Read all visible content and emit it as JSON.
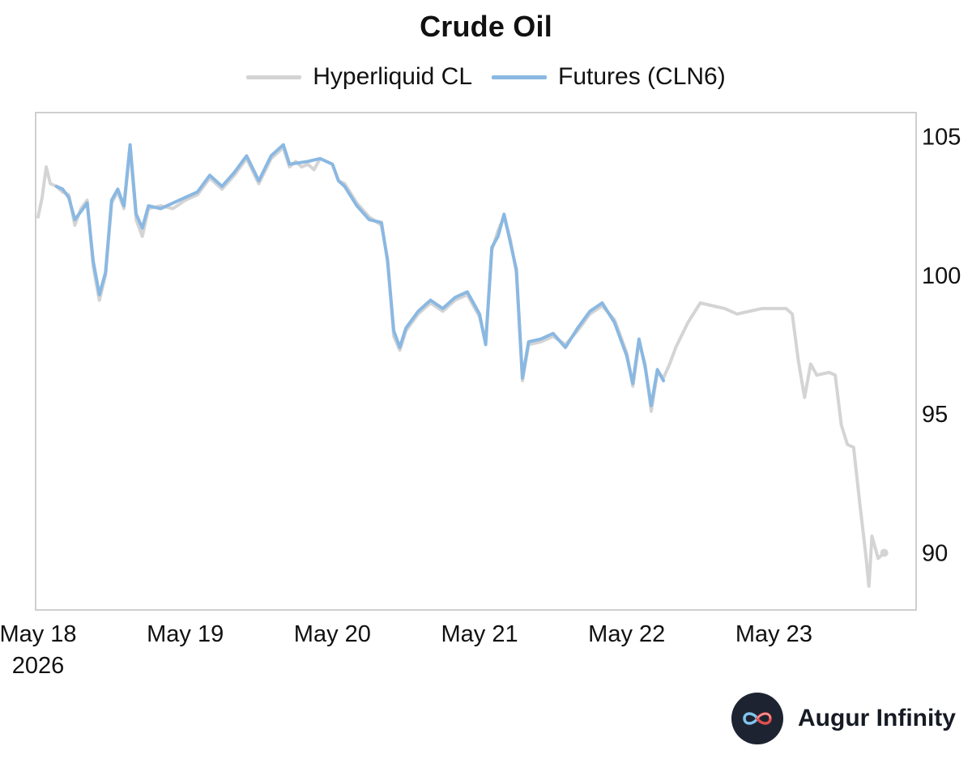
{
  "brand": {
    "name": "Augur Infinity",
    "logo_icon": "infinity-icon"
  },
  "chart_data": {
    "type": "line",
    "title": "Crude Oil",
    "xlabel": "",
    "ylabel": "",
    "x_tick_labels": [
      "May 18\n2026",
      "May 19",
      "May 20",
      "May 21",
      "May 22",
      "May 23"
    ],
    "x_range_days": [
      0,
      5.95
    ],
    "ylim": [
      88,
      105.8
    ],
    "y_ticks": [
      90,
      95,
      100,
      105
    ],
    "y_axis_position": "right",
    "grid": false,
    "legend_position": "top-center",
    "series": [
      {
        "name": "Hyperliquid CL",
        "color": "#d4d4d4",
        "points": [
          [
            "2026-05-18 00:00",
            102.1
          ],
          [
            "2026-05-18 00:40",
            102.8
          ],
          [
            "2026-05-18 01:20",
            103.9
          ],
          [
            "2026-05-18 02:00",
            103.3
          ],
          [
            "2026-05-18 03:00",
            103.2
          ],
          [
            "2026-05-18 04:00",
            103.0
          ],
          [
            "2026-05-18 05:00",
            102.9
          ],
          [
            "2026-05-18 06:00",
            101.8
          ],
          [
            "2026-05-18 07:00",
            102.4
          ],
          [
            "2026-05-18 08:00",
            102.7
          ],
          [
            "2026-05-18 09:00",
            100.3
          ],
          [
            "2026-05-18 10:00",
            99.1
          ],
          [
            "2026-05-18 11:00",
            100.0
          ],
          [
            "2026-05-18 12:00",
            102.6
          ],
          [
            "2026-05-18 13:00",
            103.0
          ],
          [
            "2026-05-18 14:00",
            102.4
          ],
          [
            "2026-05-18 15:00",
            104.6
          ],
          [
            "2026-05-18 16:00",
            102.0
          ],
          [
            "2026-05-18 17:00",
            101.4
          ],
          [
            "2026-05-18 18:00",
            102.4
          ],
          [
            "2026-05-18 20:00",
            102.5
          ],
          [
            "2026-05-18 22:00",
            102.4
          ],
          [
            "2026-05-19 00:00",
            102.7
          ],
          [
            "2026-05-19 02:00",
            102.9
          ],
          [
            "2026-05-19 04:00",
            103.5
          ],
          [
            "2026-05-19 06:00",
            103.1
          ],
          [
            "2026-05-19 08:00",
            103.6
          ],
          [
            "2026-05-19 10:00",
            104.2
          ],
          [
            "2026-05-19 12:00",
            103.3
          ],
          [
            "2026-05-19 14:00",
            104.2
          ],
          [
            "2026-05-19 16:00",
            104.6
          ],
          [
            "2026-05-19 17:00",
            103.9
          ],
          [
            "2026-05-19 18:00",
            104.1
          ],
          [
            "2026-05-19 19:00",
            103.9
          ],
          [
            "2026-05-19 20:00",
            104.0
          ],
          [
            "2026-05-19 21:00",
            103.8
          ],
          [
            "2026-05-19 22:00",
            104.2
          ],
          [
            "2026-05-20 00:00",
            104.0
          ],
          [
            "2026-05-20 01:00",
            103.4
          ],
          [
            "2026-05-20 02:00",
            103.3
          ],
          [
            "2026-05-20 04:00",
            102.6
          ],
          [
            "2026-05-20 06:00",
            102.1
          ],
          [
            "2026-05-20 08:00",
            101.8
          ],
          [
            "2026-05-20 09:00",
            100.6
          ],
          [
            "2026-05-20 10:00",
            97.8
          ],
          [
            "2026-05-20 11:00",
            97.3
          ],
          [
            "2026-05-20 12:00",
            98.0
          ],
          [
            "2026-05-20 14:00",
            98.6
          ],
          [
            "2026-05-20 16:00",
            99.0
          ],
          [
            "2026-05-20 18:00",
            98.7
          ],
          [
            "2026-05-20 20:00",
            99.1
          ],
          [
            "2026-05-20 22:00",
            99.3
          ],
          [
            "2026-05-21 00:00",
            98.5
          ],
          [
            "2026-05-21 01:00",
            97.6
          ],
          [
            "2026-05-21 02:00",
            100.9
          ],
          [
            "2026-05-21 03:00",
            101.6
          ],
          [
            "2026-05-21 04:00",
            102.1
          ],
          [
            "2026-05-21 05:00",
            101.3
          ],
          [
            "2026-05-21 06:00",
            100.1
          ],
          [
            "2026-05-21 07:00",
            96.2
          ],
          [
            "2026-05-21 08:00",
            97.5
          ],
          [
            "2026-05-21 10:00",
            97.6
          ],
          [
            "2026-05-21 12:00",
            97.8
          ],
          [
            "2026-05-21 14:00",
            97.5
          ],
          [
            "2026-05-21 16:00",
            98.0
          ],
          [
            "2026-05-21 18:00",
            98.6
          ],
          [
            "2026-05-21 20:00",
            98.9
          ],
          [
            "2026-05-21 22:00",
            98.4
          ],
          [
            "2026-05-22 00:00",
            97.2
          ],
          [
            "2026-05-22 01:00",
            96.0
          ],
          [
            "2026-05-22 02:00",
            97.6
          ],
          [
            "2026-05-22 03:00",
            96.8
          ],
          [
            "2026-05-22 04:00",
            95.1
          ],
          [
            "2026-05-22 05:00",
            96.5
          ],
          [
            "2026-05-22 06:00",
            96.3
          ],
          [
            "2026-05-22 07:00",
            96.8
          ],
          [
            "2026-05-22 08:00",
            97.4
          ],
          [
            "2026-05-22 10:00",
            98.3
          ],
          [
            "2026-05-22 12:00",
            99.0
          ],
          [
            "2026-05-22 14:00",
            98.9
          ],
          [
            "2026-05-22 16:00",
            98.8
          ],
          [
            "2026-05-22 18:00",
            98.6
          ],
          [
            "2026-05-22 20:00",
            98.7
          ],
          [
            "2026-05-22 22:00",
            98.8
          ],
          [
            "2026-05-23 00:00",
            98.8
          ],
          [
            "2026-05-23 02:00",
            98.8
          ],
          [
            "2026-05-23 03:00",
            98.6
          ],
          [
            "2026-05-23 04:00",
            96.9
          ],
          [
            "2026-05-23 05:00",
            95.6
          ],
          [
            "2026-05-23 06:00",
            96.8
          ],
          [
            "2026-05-23 07:00",
            96.4
          ],
          [
            "2026-05-23 09:00",
            96.5
          ],
          [
            "2026-05-23 10:00",
            96.4
          ],
          [
            "2026-05-23 11:00",
            94.6
          ],
          [
            "2026-05-23 12:00",
            93.9
          ],
          [
            "2026-05-23 13:00",
            93.8
          ],
          [
            "2026-05-23 14:00",
            91.8
          ],
          [
            "2026-05-23 15:00",
            89.9
          ],
          [
            "2026-05-23 15:30",
            88.8
          ],
          [
            "2026-05-23 16:00",
            90.6
          ],
          [
            "2026-05-23 17:00",
            89.8
          ],
          [
            "2026-05-23 18:00",
            90.0
          ]
        ]
      },
      {
        "name": "Futures (CLN6)",
        "color": "#8ab8e2",
        "points": [
          [
            "2026-05-18 03:00",
            103.2
          ],
          [
            "2026-05-18 04:00",
            103.1
          ],
          [
            "2026-05-18 05:00",
            102.8
          ],
          [
            "2026-05-18 06:00",
            102.0
          ],
          [
            "2026-05-18 07:00",
            102.3
          ],
          [
            "2026-05-18 08:00",
            102.6
          ],
          [
            "2026-05-18 09:00",
            100.5
          ],
          [
            "2026-05-18 10:00",
            99.3
          ],
          [
            "2026-05-18 11:00",
            100.1
          ],
          [
            "2026-05-18 12:00",
            102.7
          ],
          [
            "2026-05-18 13:00",
            103.1
          ],
          [
            "2026-05-18 14:00",
            102.5
          ],
          [
            "2026-05-18 15:00",
            104.7
          ],
          [
            "2026-05-18 16:00",
            102.2
          ],
          [
            "2026-05-18 17:00",
            101.7
          ],
          [
            "2026-05-18 18:00",
            102.5
          ],
          [
            "2026-05-18 20:00",
            102.4
          ],
          [
            "2026-05-18 22:00",
            102.6
          ],
          [
            "2026-05-19 00:00",
            102.8
          ],
          [
            "2026-05-19 02:00",
            103.0
          ],
          [
            "2026-05-19 04:00",
            103.6
          ],
          [
            "2026-05-19 06:00",
            103.2
          ],
          [
            "2026-05-19 08:00",
            103.7
          ],
          [
            "2026-05-19 10:00",
            104.3
          ],
          [
            "2026-05-19 12:00",
            103.4
          ],
          [
            "2026-05-19 14:00",
            104.3
          ],
          [
            "2026-05-19 16:00",
            104.7
          ],
          [
            "2026-05-19 17:00",
            104.0
          ],
          [
            "2026-05-19 20:00",
            104.1
          ],
          [
            "2026-05-19 22:00",
            104.2
          ],
          [
            "2026-05-20 00:00",
            104.0
          ],
          [
            "2026-05-20 01:00",
            103.4
          ],
          [
            "2026-05-20 02:00",
            103.2
          ],
          [
            "2026-05-20 04:00",
            102.5
          ],
          [
            "2026-05-20 06:00",
            102.0
          ],
          [
            "2026-05-20 08:00",
            101.9
          ],
          [
            "2026-05-20 09:00",
            100.5
          ],
          [
            "2026-05-20 10:00",
            98.0
          ],
          [
            "2026-05-20 11:00",
            97.4
          ],
          [
            "2026-05-20 12:00",
            98.1
          ],
          [
            "2026-05-20 14:00",
            98.7
          ],
          [
            "2026-05-20 16:00",
            99.1
          ],
          [
            "2026-05-20 18:00",
            98.8
          ],
          [
            "2026-05-20 20:00",
            99.2
          ],
          [
            "2026-05-20 22:00",
            99.4
          ],
          [
            "2026-05-21 00:00",
            98.6
          ],
          [
            "2026-05-21 01:00",
            97.5
          ],
          [
            "2026-05-21 02:00",
            101.0
          ],
          [
            "2026-05-21 03:00",
            101.4
          ],
          [
            "2026-05-21 04:00",
            102.2
          ],
          [
            "2026-05-21 05:00",
            101.2
          ],
          [
            "2026-05-21 06:00",
            100.2
          ],
          [
            "2026-05-21 07:00",
            96.3
          ],
          [
            "2026-05-21 08:00",
            97.6
          ],
          [
            "2026-05-21 10:00",
            97.7
          ],
          [
            "2026-05-21 12:00",
            97.9
          ],
          [
            "2026-05-21 14:00",
            97.4
          ],
          [
            "2026-05-21 16:00",
            98.1
          ],
          [
            "2026-05-21 18:00",
            98.7
          ],
          [
            "2026-05-21 20:00",
            99.0
          ],
          [
            "2026-05-21 22:00",
            98.3
          ],
          [
            "2026-05-22 00:00",
            97.1
          ],
          [
            "2026-05-22 01:00",
            96.1
          ],
          [
            "2026-05-22 02:00",
            97.7
          ],
          [
            "2026-05-22 03:00",
            96.7
          ],
          [
            "2026-05-22 04:00",
            95.3
          ],
          [
            "2026-05-22 05:00",
            96.6
          ],
          [
            "2026-05-22 06:00",
            96.2
          ]
        ]
      }
    ]
  }
}
